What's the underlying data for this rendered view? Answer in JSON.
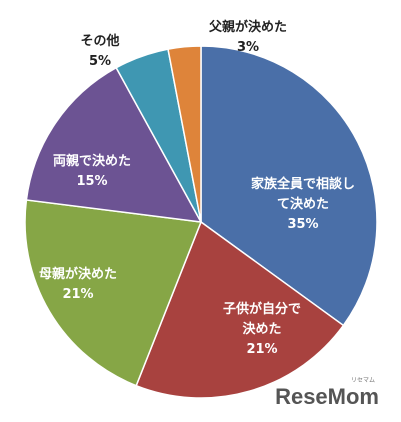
{
  "chart_data": {
    "type": "pie",
    "categories": [
      "家族全員で相談して決めた",
      "子供が自分で決めた",
      "母親が決めた",
      "両親で決めた",
      "その他",
      "父親が決めた"
    ],
    "values": [
      35,
      21,
      21,
      15,
      5,
      3
    ],
    "value_labels": [
      "35%",
      "21%",
      "21%",
      "15%",
      "5%",
      "3%"
    ],
    "colors": [
      "#4a6fa8",
      "#a8423f",
      "#86a646",
      "#6c5393",
      "#3f97b2",
      "#de843a"
    ],
    "watermark": "ReseMom",
    "watermark_sub": "リセマム"
  }
}
